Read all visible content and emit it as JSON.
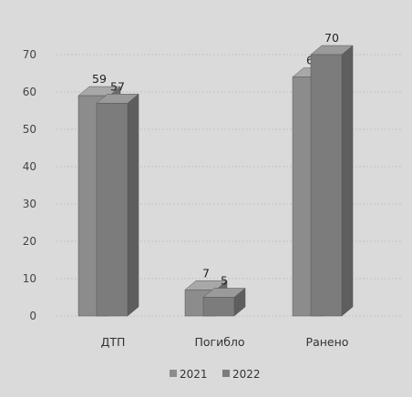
{
  "chart_data": {
    "type": "bar",
    "style": "3d-clustered-column",
    "categories": [
      "ДТП",
      "Погибло",
      "Ранено"
    ],
    "series": [
      {
        "name": "2021",
        "values": [
          59,
          7,
          64
        ]
      },
      {
        "name": "2022",
        "values": [
          57,
          5,
          70
        ]
      }
    ],
    "y_ticks": [
      "0",
      "10",
      "20",
      "30",
      "40",
      "50",
      "60",
      "70"
    ],
    "ylim": [
      0,
      70
    ],
    "grid": true,
    "legend_position": "bottom",
    "colors": {
      "series_front": [
        "#8c8c8c",
        "#7c7c7c"
      ],
      "series_top": [
        "#a8a8a8",
        "#9a9a9a"
      ],
      "series_side": [
        "#6a6a6a",
        "#5e5e5e"
      ],
      "grid": "#c2c2c2",
      "background": "#dadada"
    }
  }
}
